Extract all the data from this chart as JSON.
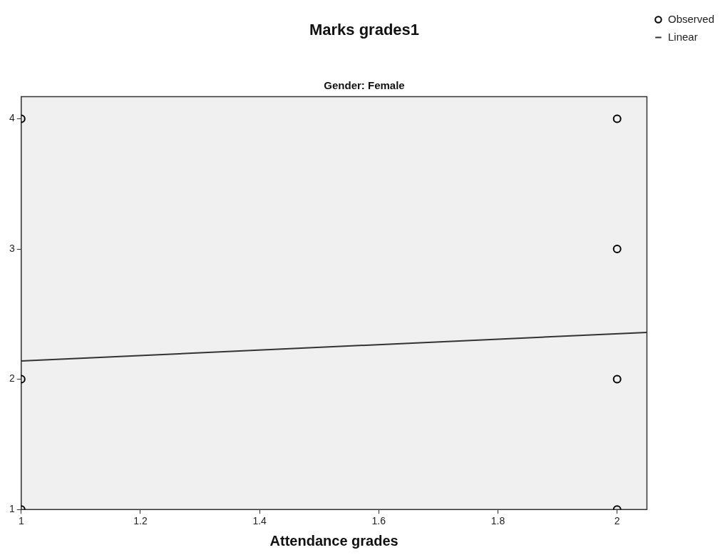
{
  "chart_data": {
    "type": "scatter",
    "title": "Marks grades1",
    "subtitle": "Gender: Female",
    "xlabel": "Attendance grades",
    "series": [
      {
        "name": "Observed",
        "color": "#000000",
        "marker": "circle",
        "x": [
          1,
          1,
          1,
          2,
          2,
          2,
          2
        ],
        "values": [
          4,
          2,
          1,
          4,
          3,
          2,
          1
        ]
      },
      {
        "name": "Linear",
        "type": "line",
        "color": "#333333",
        "marker": "none",
        "line_style": "solid",
        "x": [
          1,
          2.05
        ],
        "values": [
          2.14,
          2.36
        ]
      }
    ],
    "xlim": [
      1,
      2.05
    ],
    "xticks": [
      1,
      1.2,
      1.4,
      1.6,
      1.8,
      2
    ],
    "ylim": [
      1,
      4.17
    ],
    "yticks": [
      1,
      2,
      3,
      4
    ],
    "grid": false,
    "legend": "top right"
  }
}
